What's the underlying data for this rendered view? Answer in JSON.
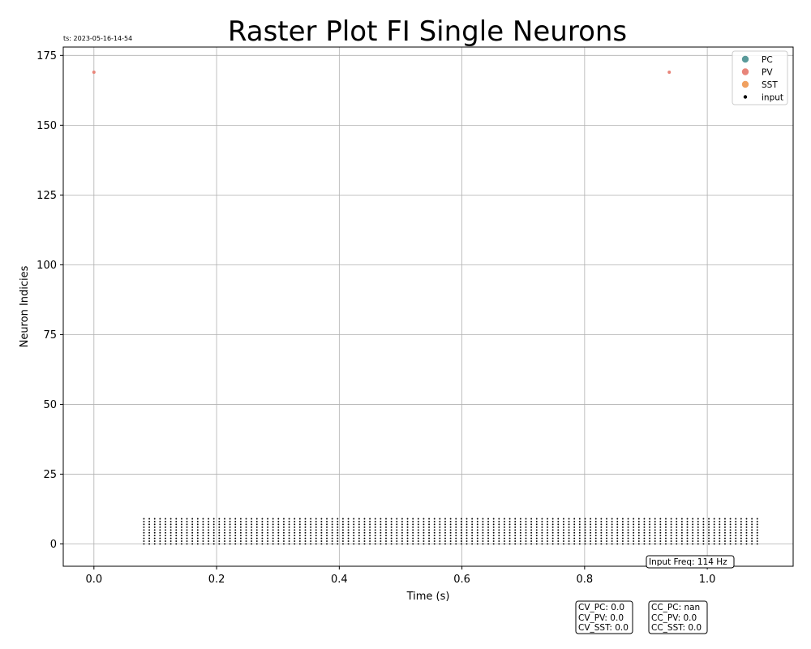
{
  "chart_data": {
    "type": "scatter",
    "title": "Raster Plot FI Single Neurons",
    "timestamp": "ts: 2023-05-16-14-54",
    "xlabel": "Time (s)",
    "ylabel": "Neuron Indicies",
    "xlim": [
      -0.05,
      1.14
    ],
    "ylim": [
      -8,
      178
    ],
    "xticks": [
      0.0,
      0.2,
      0.4,
      0.6,
      0.8,
      1.0
    ],
    "xtick_labels": [
      "0.0",
      "0.2",
      "0.4",
      "0.6",
      "0.8",
      "1.0"
    ],
    "yticks": [
      0,
      25,
      50,
      75,
      100,
      125,
      150,
      175
    ],
    "ytick_labels": [
      "0",
      "25",
      "50",
      "75",
      "100",
      "125",
      "150",
      "175"
    ],
    "grid": true,
    "legend_position": "top-right",
    "series": [
      {
        "name": "PC",
        "color": "#5a9a9a",
        "points": []
      },
      {
        "name": "PV",
        "color": "#e8857a",
        "points": [
          [
            0.0,
            169
          ],
          [
            0.938,
            169
          ]
        ]
      },
      {
        "name": "SST",
        "color": "#f0a060",
        "points": []
      },
      {
        "name": "input",
        "color": "#000000",
        "train": {
          "t_start": 0.0815,
          "t_end": 1.0815,
          "rate_hz": 114,
          "neurons": [
            0,
            1,
            2,
            3,
            4,
            5,
            6,
            7,
            8,
            9
          ]
        }
      }
    ],
    "annotations": {
      "input_freq": "Input Freq: 114 Hz",
      "cv": [
        "CV_PC: 0.0",
        "CV_PV: 0.0",
        "CV_SST: 0.0"
      ],
      "cc": [
        "CC_PC: nan",
        "CC_PV: 0.0",
        "CC_SST: 0.0"
      ]
    }
  }
}
